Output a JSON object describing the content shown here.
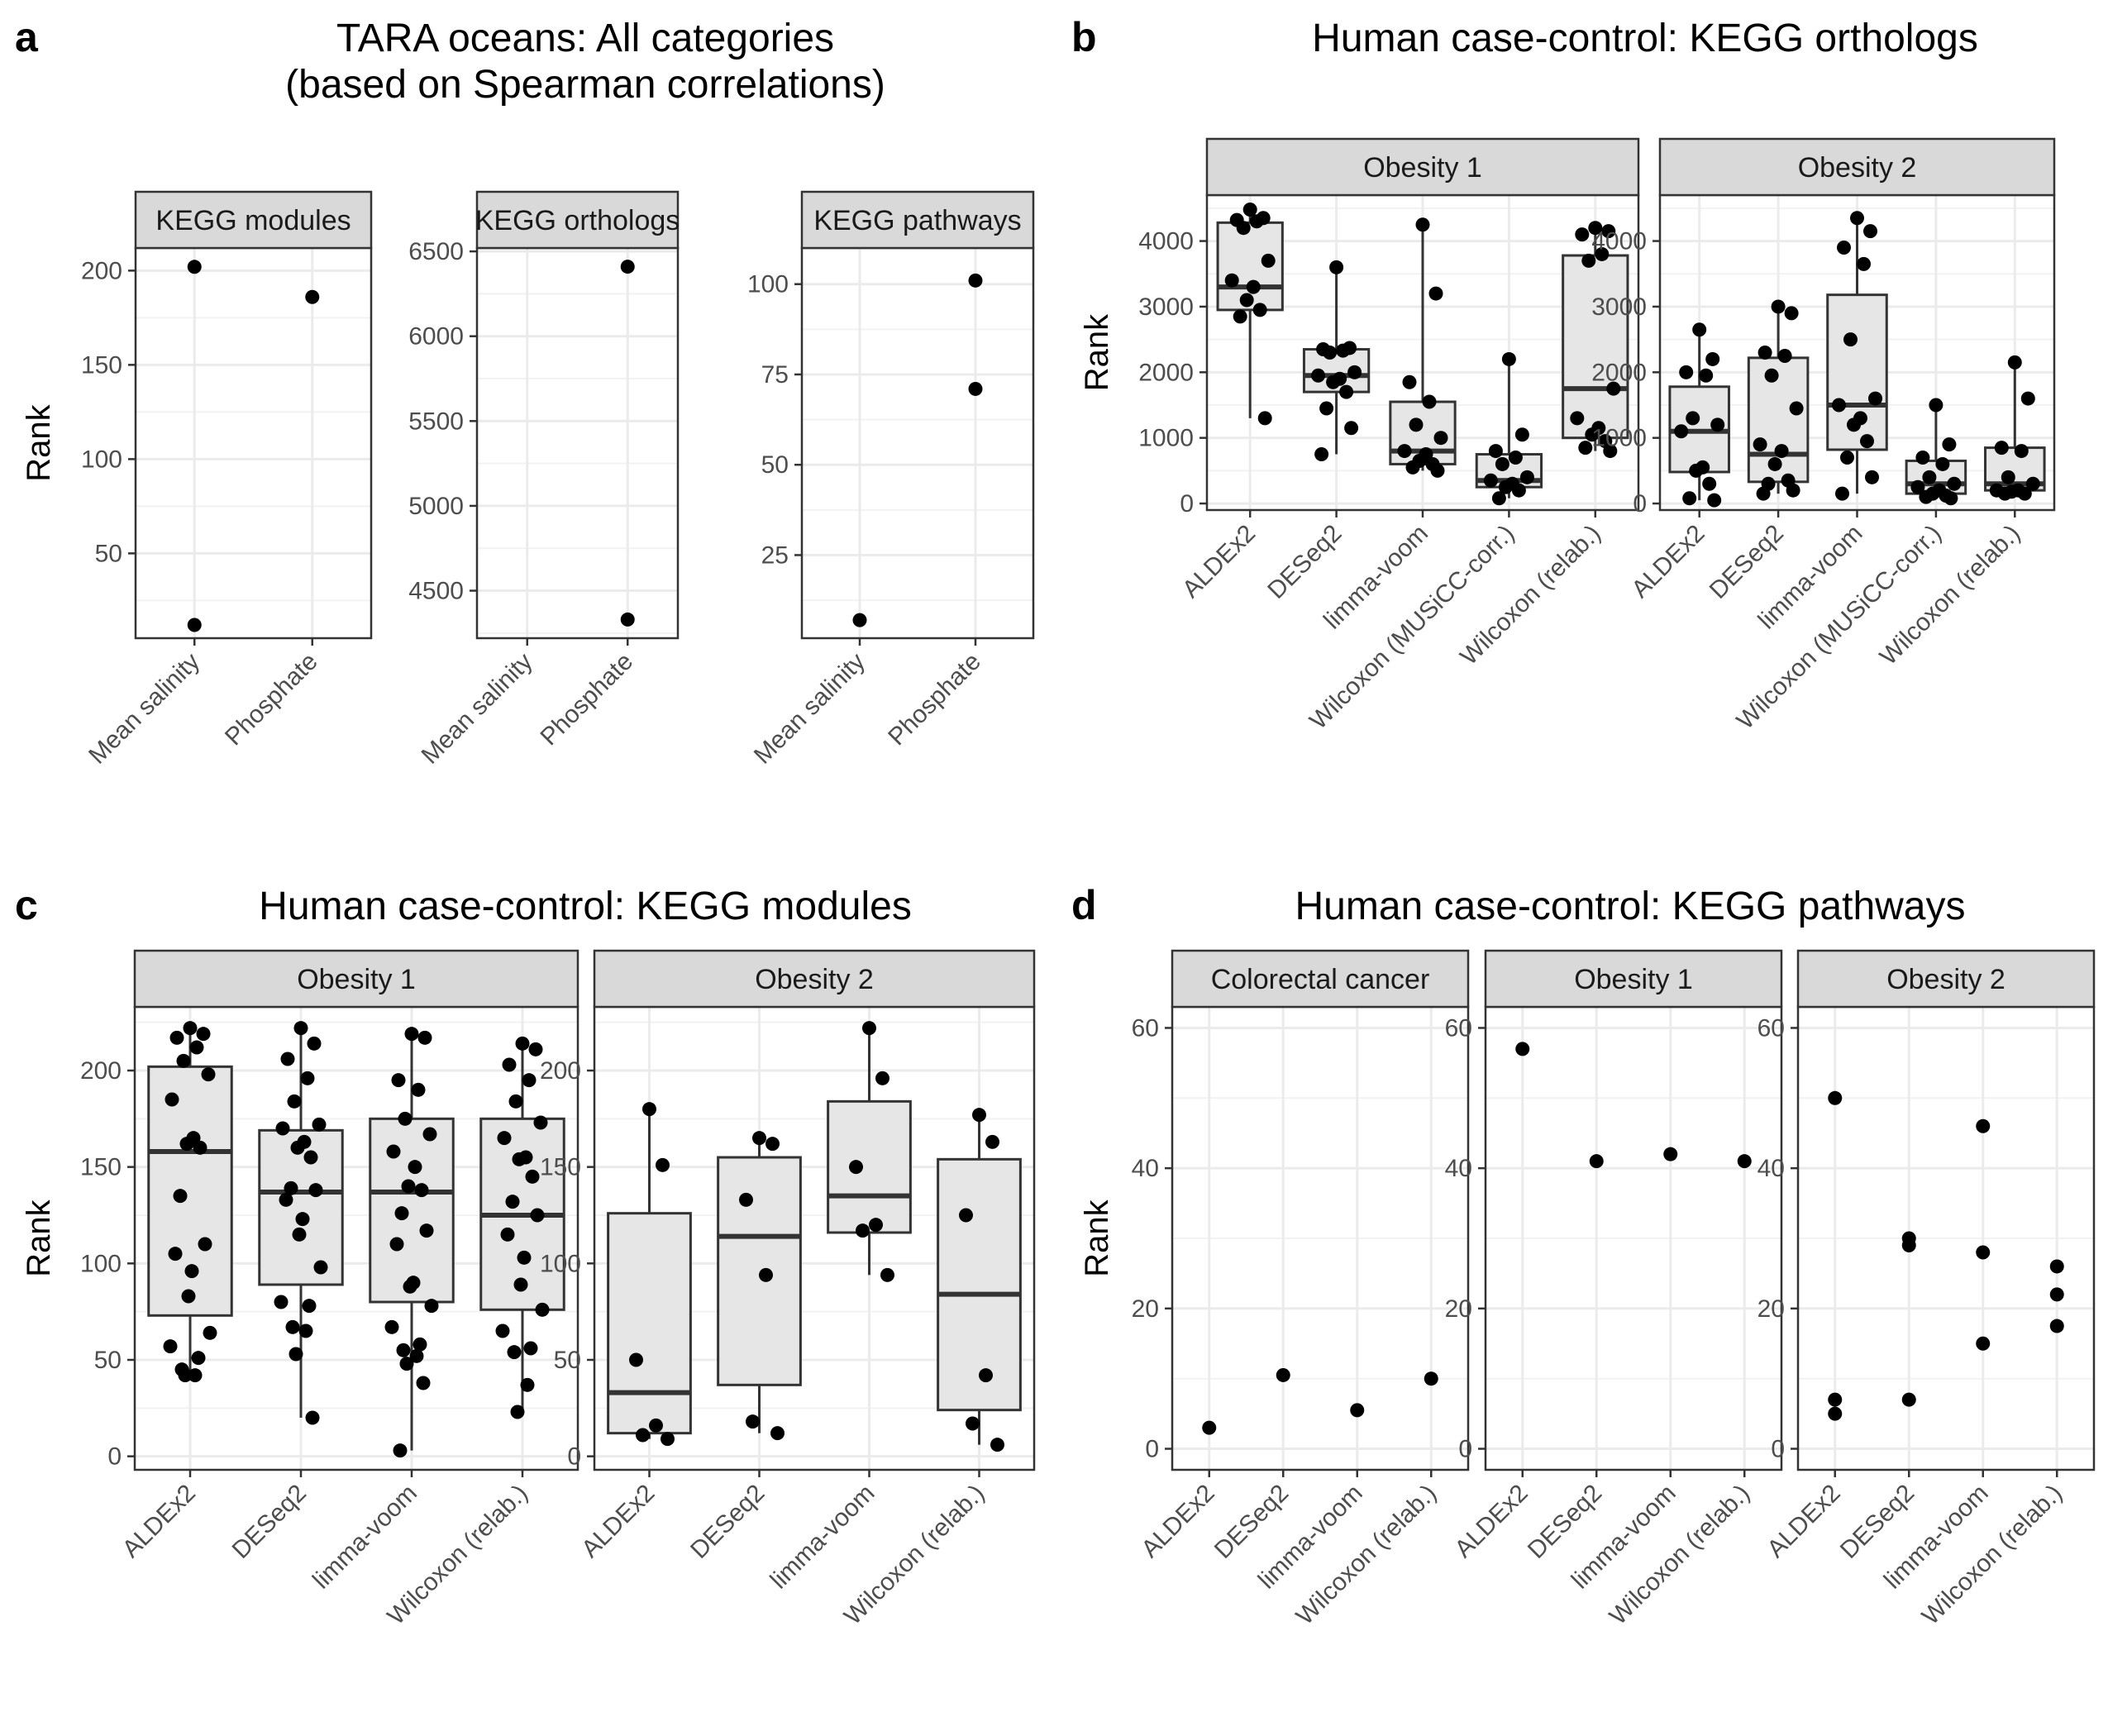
{
  "chart_data": [
    {
      "panel": "a",
      "type": "scatter",
      "title": "TARA oceans: All categories\n(based on Spearman correlations)",
      "ylabel": "Rank",
      "categories": [
        "Mean salinity",
        "Phosphate"
      ],
      "facets": [
        {
          "strip": "KEGG modules",
          "ylim": [
            5,
            212
          ],
          "yticks": [
            50,
            100,
            150,
            200
          ],
          "points": [
            {
              "x": "Mean salinity",
              "y": 202
            },
            {
              "x": "Mean salinity",
              "y": 12
            },
            {
              "x": "Phosphate",
              "y": 186
            }
          ]
        },
        {
          "strip": "KEGG orthologs",
          "ylim": [
            4220,
            6520
          ],
          "yticks": [
            4500,
            5000,
            5500,
            6000,
            6500
          ],
          "points": [
            {
              "x": "Phosphate",
              "y": 6410
            },
            {
              "x": "Phosphate",
              "y": 4330
            }
          ]
        },
        {
          "strip": "KEGG pathways",
          "ylim": [
            2,
            110
          ],
          "yticks": [
            25,
            50,
            75,
            100
          ],
          "points": [
            {
              "x": "Mean salinity",
              "y": 7
            },
            {
              "x": "Phosphate",
              "y": 101
            },
            {
              "x": "Phosphate",
              "y": 71
            }
          ]
        }
      ]
    },
    {
      "panel": "b",
      "type": "box",
      "title": "Human case-control: KEGG orthologs",
      "ylabel": "Rank",
      "categories": [
        "ALDEx2",
        "DESeq2",
        "limma-voom",
        "Wilcoxon (MUSiCC-corr.)",
        "Wilcoxon (relab.)"
      ],
      "ylim": [
        -100,
        4700
      ],
      "yticks": [
        0,
        1000,
        2000,
        3000,
        4000
      ],
      "facets": [
        {
          "strip": "Obesity 1",
          "boxes": [
            {
              "category": "ALDEx2",
              "q1": 2950,
              "median": 3300,
              "q3": 4280,
              "lower": 1300,
              "upper": 4480,
              "points": [
                4480,
                4350,
                4320,
                4300,
                4200,
                3700,
                3400,
                3300,
                3100,
                2950,
                2850,
                1300
              ]
            },
            {
              "category": "DESeq2",
              "q1": 1700,
              "median": 1950,
              "q3": 2350,
              "lower": 750,
              "upper": 3600,
              "points": [
                3600,
                2370,
                2350,
                2330,
                2300,
                2000,
                1950,
                1900,
                1850,
                1700,
                1450,
                1150,
                750
              ]
            },
            {
              "category": "limma-voom",
              "q1": 600,
              "median": 800,
              "q3": 1550,
              "lower": 500,
              "upper": 4250,
              "points": [
                4250,
                3200,
                1850,
                1550,
                1200,
                1000,
                800,
                750,
                650,
                600,
                550,
                500
              ]
            },
            {
              "category": "Wilcoxon (MUSiCC-corr.)",
              "q1": 250,
              "median": 350,
              "q3": 750,
              "lower": 80,
              "upper": 2200,
              "points": [
                2200,
                1050,
                800,
                700,
                600,
                400,
                350,
                300,
                250,
                200,
                80
              ]
            },
            {
              "category": "Wilcoxon (relab.)",
              "q1": 1000,
              "median": 1750,
              "q3": 3780,
              "lower": 800,
              "upper": 4200,
              "points": [
                4200,
                4150,
                4100,
                3800,
                3700,
                1750,
                1300,
                1150,
                1050,
                950,
                850,
                800
              ]
            }
          ]
        },
        {
          "strip": "Obesity 2",
          "boxes": [
            {
              "category": "ALDEx2",
              "q1": 480,
              "median": 1100,
              "q3": 1780,
              "lower": 50,
              "upper": 2650,
              "points": [
                2650,
                2200,
                2000,
                1950,
                1300,
                1200,
                1100,
                550,
                500,
                300,
                80,
                50
              ]
            },
            {
              "category": "DESeq2",
              "q1": 330,
              "median": 750,
              "q3": 2220,
              "lower": 150,
              "upper": 3000,
              "points": [
                3000,
                2900,
                2300,
                2250,
                1950,
                1450,
                900,
                800,
                600,
                350,
                300,
                200,
                150
              ]
            },
            {
              "category": "limma-voom",
              "q1": 820,
              "median": 1500,
              "q3": 3180,
              "lower": 150,
              "upper": 4350,
              "points": [
                4350,
                4150,
                3900,
                3650,
                2500,
                1600,
                1500,
                1300,
                1200,
                950,
                700,
                400,
                150
              ]
            },
            {
              "category": "Wilcoxon (MUSiCC-corr.)",
              "q1": 150,
              "median": 300,
              "q3": 650,
              "lower": 80,
              "upper": 1500,
              "points": [
                1500,
                900,
                700,
                600,
                400,
                300,
                250,
                200,
                150,
                120,
                100,
                80
              ]
            },
            {
              "category": "Wilcoxon (relab.)",
              "q1": 200,
              "median": 300,
              "q3": 850,
              "lower": 150,
              "upper": 2150,
              "points": [
                2150,
                1600,
                850,
                800,
                400,
                300,
                200,
                200,
                180,
                150,
                150
              ]
            }
          ]
        }
      ]
    },
    {
      "panel": "c",
      "type": "box",
      "title": "Human case-control: KEGG modules",
      "ylabel": "Rank",
      "categories": [
        "ALDEx2",
        "DESeq2",
        "limma-voom",
        "Wilcoxon (relab.)"
      ],
      "ylim": [
        -7,
        233
      ],
      "yticks": [
        0,
        50,
        100,
        150,
        200
      ],
      "facets": [
        {
          "strip": "Obesity 1",
          "boxes": [
            {
              "category": "ALDEx2",
              "q1": 73,
              "median": 158,
              "q3": 202,
              "lower": 42,
              "upper": 222,
              "points": [
                222,
                219,
                217,
                212,
                205,
                198,
                185,
                165,
                162,
                160,
                135,
                110,
                105,
                96,
                83,
                64,
                57,
                51,
                45,
                42,
                42
              ]
            },
            {
              "category": "DESeq2",
              "q1": 89,
              "median": 137,
              "q3": 169,
              "lower": 20,
              "upper": 222,
              "points": [
                222,
                214,
                206,
                196,
                184,
                172,
                170,
                163,
                160,
                155,
                139,
                138,
                133,
                123,
                115,
                98,
                80,
                78,
                67,
                65,
                53,
                20
              ]
            },
            {
              "category": "limma-voom",
              "q1": 80,
              "median": 137,
              "q3": 175,
              "lower": 3,
              "upper": 219,
              "points": [
                219,
                217,
                195,
                190,
                175,
                167,
                158,
                150,
                140,
                138,
                126,
                117,
                110,
                90,
                88,
                78,
                67,
                58,
                55,
                52,
                48,
                38,
                3
              ]
            },
            {
              "category": "Wilcoxon (relab.)",
              "q1": 76,
              "median": 125,
              "q3": 175,
              "lower": 23,
              "upper": 214,
              "points": [
                214,
                211,
                203,
                195,
                184,
                173,
                165,
                155,
                154,
                145,
                132,
                125,
                115,
                103,
                89,
                76,
                65,
                56,
                54,
                37,
                23
              ]
            }
          ]
        },
        {
          "strip": "Obesity 2",
          "boxes": [
            {
              "category": "ALDEx2",
              "q1": 12,
              "median": 33,
              "q3": 126,
              "lower": 9,
              "upper": 180,
              "points": [
                180,
                151,
                50,
                16,
                11,
                9
              ]
            },
            {
              "category": "DESeq2",
              "q1": 37,
              "median": 114,
              "q3": 155,
              "lower": 12,
              "upper": 165,
              "points": [
                165,
                162,
                133,
                94,
                18,
                12
              ]
            },
            {
              "category": "limma-voom",
              "q1": 116,
              "median": 135,
              "q3": 184,
              "lower": 94,
              "upper": 222,
              "points": [
                222,
                196,
                150,
                120,
                117,
                94
              ]
            },
            {
              "category": "Wilcoxon (relab.)",
              "q1": 24,
              "median": 84,
              "q3": 154,
              "lower": 6,
              "upper": 177,
              "points": [
                177,
                163,
                125,
                42,
                17,
                6
              ]
            }
          ]
        }
      ]
    },
    {
      "panel": "d",
      "type": "scatter",
      "title": "Human case-control: KEGG pathways",
      "ylabel": "Rank",
      "categories": [
        "ALDEx2",
        "DESeq2",
        "limma-voom",
        "Wilcoxon (relab.)"
      ],
      "ylim": [
        -3,
        63
      ],
      "yticks": [
        0,
        20,
        40,
        60
      ],
      "facets": [
        {
          "strip": "Colorectal cancer",
          "points": [
            {
              "x": "ALDEx2",
              "y": 3
            },
            {
              "x": "DESeq2",
              "y": 10.5
            },
            {
              "x": "limma-voom",
              "y": 5.5
            },
            {
              "x": "Wilcoxon (relab.)",
              "y": 10
            }
          ]
        },
        {
          "strip": "Obesity 1",
          "points": [
            {
              "x": "ALDEx2",
              "y": 57
            },
            {
              "x": "DESeq2",
              "y": 41
            },
            {
              "x": "limma-voom",
              "y": 42
            },
            {
              "x": "Wilcoxon (relab.)",
              "y": 41
            }
          ]
        },
        {
          "strip": "Obesity 2",
          "points": [
            {
              "x": "ALDEx2",
              "y": 50
            },
            {
              "x": "ALDEx2",
              "y": 7
            },
            {
              "x": "ALDEx2",
              "y": 5
            },
            {
              "x": "DESeq2",
              "y": 29
            },
            {
              "x": "DESeq2",
              "y": 30
            },
            {
              "x": "DESeq2",
              "y": 7
            },
            {
              "x": "limma-voom",
              "y": 46
            },
            {
              "x": "limma-voom",
              "y": 28
            },
            {
              "x": "limma-voom",
              "y": 15
            },
            {
              "x": "Wilcoxon (relab.)",
              "y": 26
            },
            {
              "x": "Wilcoxon (relab.)",
              "y": 22
            },
            {
              "x": "Wilcoxon (relab.)",
              "y": 17.5
            }
          ]
        }
      ]
    }
  ]
}
